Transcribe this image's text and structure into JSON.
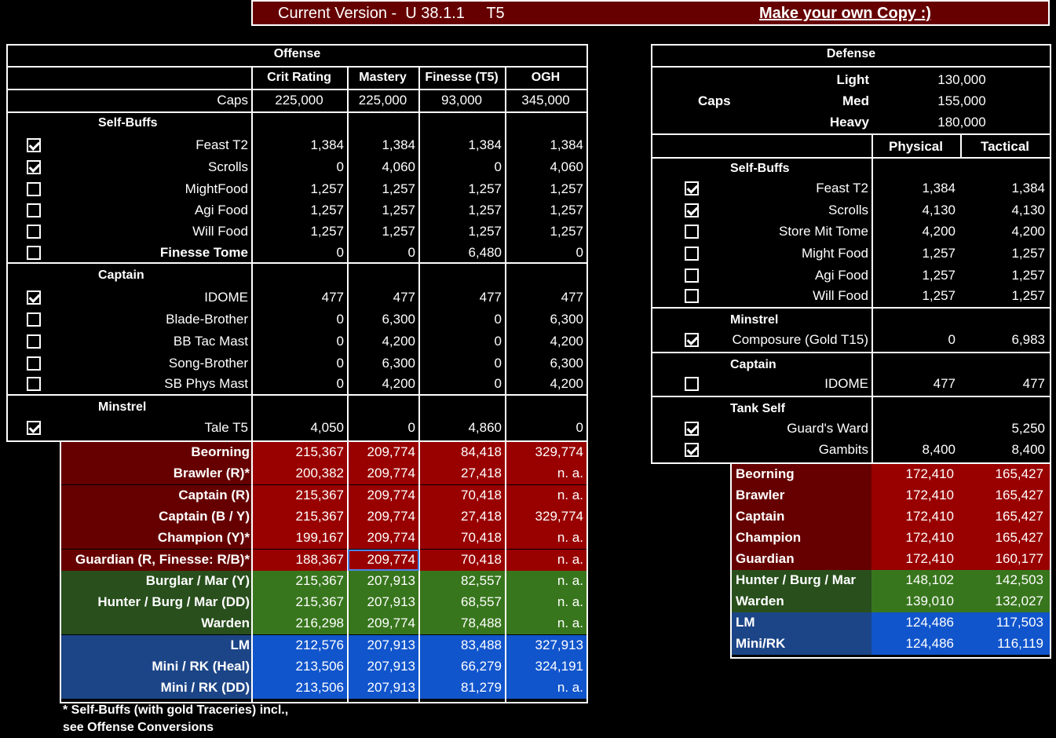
{
  "banner": {
    "version_label": "Current Version -  U 38.1.1     T5",
    "copy_link": "Make your own Copy :)"
  },
  "offense": {
    "title": "Offense",
    "columns": [
      "Crit Rating",
      "Mastery",
      "Finesse (T5)",
      "OGH"
    ],
    "caps_label": "Caps",
    "caps": [
      "225,000",
      "225,000",
      "93,000",
      "345,000"
    ],
    "groups": [
      {
        "name": "Self-Buffs",
        "rows": [
          {
            "label": "Feast T2",
            "checked": true,
            "vals": [
              "1,384",
              "1,384",
              "1,384",
              "1,384"
            ]
          },
          {
            "label": "Scrolls",
            "checked": true,
            "vals": [
              "0",
              "4,060",
              "0",
              "4,060"
            ]
          },
          {
            "label": "MightFood",
            "checked": false,
            "vals": [
              "1,257",
              "1,257",
              "1,257",
              "1,257"
            ]
          },
          {
            "label": "Agi Food",
            "checked": false,
            "vals": [
              "1,257",
              "1,257",
              "1,257",
              "1,257"
            ]
          },
          {
            "label": "Will Food",
            "checked": false,
            "vals": [
              "1,257",
              "1,257",
              "1,257",
              "1,257"
            ]
          },
          {
            "label": "Finesse Tome",
            "checked": false,
            "bold": true,
            "vals": [
              "0",
              "0",
              "6,480",
              "0"
            ]
          }
        ]
      },
      {
        "name": "Captain",
        "rows": [
          {
            "label": "IDOME",
            "checked": true,
            "vals": [
              "477",
              "477",
              "477",
              "477"
            ]
          },
          {
            "label": "Blade-Brother",
            "checked": false,
            "vals": [
              "0",
              "6,300",
              "0",
              "6,300"
            ]
          },
          {
            "label": "BB Tac Mast",
            "checked": false,
            "vals": [
              "0",
              "4,200",
              "0",
              "4,200"
            ]
          },
          {
            "label": "Song-Brother",
            "checked": false,
            "vals": [
              "0",
              "6,300",
              "0",
              "6,300"
            ]
          },
          {
            "label": "SB Phys Mast",
            "checked": false,
            "vals": [
              "0",
              "4,200",
              "0",
              "4,200"
            ]
          }
        ]
      },
      {
        "name": "Minstrel",
        "rows": [
          {
            "label": "Tale T5",
            "checked": true,
            "vals": [
              "4,050",
              "0",
              "4,860",
              "0"
            ]
          }
        ]
      }
    ],
    "results": [
      {
        "label": "Beorning",
        "color": "red",
        "vals": [
          "215,367",
          "209,774",
          "84,418",
          "329,774"
        ]
      },
      {
        "label": "Brawler (R)*",
        "color": "red",
        "vals": [
          "200,382",
          "209,774",
          "27,418",
          "n. a."
        ]
      },
      {
        "label": "Captain (R)",
        "color": "red",
        "vals": [
          "215,367",
          "209,774",
          "70,418",
          "n. a."
        ]
      },
      {
        "label": "Captain (B / Y)",
        "color": "red",
        "vals": [
          "215,367",
          "209,774",
          "27,418",
          "329,774"
        ]
      },
      {
        "label": "Champion (Y)*",
        "color": "red",
        "vals": [
          "199,167",
          "209,774",
          "70,418",
          "n. a."
        ]
      },
      {
        "label": "Guardian (R, Finesse: R/B)*",
        "color": "red",
        "vals": [
          "188,367",
          "209,774",
          "70,418",
          "n. a."
        ]
      },
      {
        "label": "Burglar / Mar (Y)",
        "color": "green",
        "vals": [
          "215,367",
          "207,913",
          "82,557",
          "n. a."
        ]
      },
      {
        "label": "Hunter / Burg / Mar (DD)",
        "color": "green",
        "vals": [
          "215,367",
          "207,913",
          "68,557",
          "n. a."
        ]
      },
      {
        "label": "Warden",
        "color": "green",
        "vals": [
          "216,298",
          "209,774",
          "78,488",
          "n. a."
        ]
      },
      {
        "label": "LM",
        "color": "blue",
        "vals": [
          "212,576",
          "207,913",
          "83,488",
          "327,913"
        ]
      },
      {
        "label": "Mini / RK (Heal)",
        "color": "blue",
        "vals": [
          "213,506",
          "207,913",
          "66,279",
          "324,191"
        ]
      },
      {
        "label": "Mini / RK (DD)",
        "color": "blue",
        "vals": [
          "213,506",
          "207,913",
          "81,279",
          "n. a."
        ]
      }
    ],
    "note_line1": "* Self-Buffs (with gold Traceries) incl.,",
    "note_line2": "see Offense Conversions"
  },
  "defense": {
    "title": "Defense",
    "caps_label": "Caps",
    "caps": [
      {
        "label": "Light",
        "value": "130,000"
      },
      {
        "label": "Med",
        "value": "155,000"
      },
      {
        "label": "Heavy",
        "value": "180,000"
      }
    ],
    "columns": [
      "Physical",
      "Tactical"
    ],
    "groups": [
      {
        "name": "Self-Buffs",
        "rows": [
          {
            "label": "Feast T2",
            "checked": true,
            "vals": [
              "1,384",
              "1,384"
            ]
          },
          {
            "label": "Scrolls",
            "checked": true,
            "vals": [
              "4,130",
              "4,130"
            ]
          },
          {
            "label": "Store Mit Tome",
            "checked": false,
            "vals": [
              "4,200",
              "4,200"
            ]
          },
          {
            "label": "Might Food",
            "checked": false,
            "vals": [
              "1,257",
              "1,257"
            ]
          },
          {
            "label": "Agi Food",
            "checked": false,
            "vals": [
              "1,257",
              "1,257"
            ]
          },
          {
            "label": "Will Food",
            "checked": false,
            "vals": [
              "1,257",
              "1,257"
            ]
          }
        ]
      },
      {
        "name": "Minstrel",
        "rows": [
          {
            "label": "Composure (Gold T15)",
            "checked": true,
            "vals": [
              "0",
              "6,983"
            ]
          }
        ]
      },
      {
        "name": "Captain",
        "rows": [
          {
            "label": "IDOME",
            "checked": false,
            "vals": [
              "477",
              "477"
            ]
          }
        ]
      },
      {
        "name": "Tank Self",
        "rows": [
          {
            "label": "Guard's Ward",
            "checked": true,
            "vals": [
              "",
              "5,250"
            ]
          },
          {
            "label": "Gambits",
            "checked": true,
            "vals": [
              "8,400",
              "8,400"
            ]
          }
        ]
      }
    ],
    "results": [
      {
        "label": "Beorning",
        "color": "red",
        "vals": [
          "172,410",
          "165,427"
        ]
      },
      {
        "label": "Brawler",
        "color": "red",
        "vals": [
          "172,410",
          "165,427"
        ]
      },
      {
        "label": "Captain",
        "color": "red",
        "vals": [
          "172,410",
          "165,427"
        ]
      },
      {
        "label": "Champion",
        "color": "red",
        "vals": [
          "172,410",
          "165,427"
        ]
      },
      {
        "label": "Guardian",
        "color": "red",
        "vals": [
          "172,410",
          "160,177"
        ]
      },
      {
        "label": "Hunter / Burg / Mar",
        "color": "green",
        "vals": [
          "148,102",
          "142,503"
        ]
      },
      {
        "label": "Warden",
        "color": "green",
        "vals": [
          "139,010",
          "132,027"
        ]
      },
      {
        "label": "LM",
        "color": "blue",
        "vals": [
          "124,486",
          "117,503"
        ]
      },
      {
        "label": "Mini/RK",
        "color": "blue",
        "vals": [
          "124,486",
          "116,119"
        ]
      }
    ]
  },
  "colors": {
    "red_dark": "#660000",
    "red": "#990000",
    "green_dark": "#284f1c",
    "green": "#38761d",
    "blue_dark": "#1c4587",
    "blue": "#1155cc",
    "banner": "#660000"
  }
}
